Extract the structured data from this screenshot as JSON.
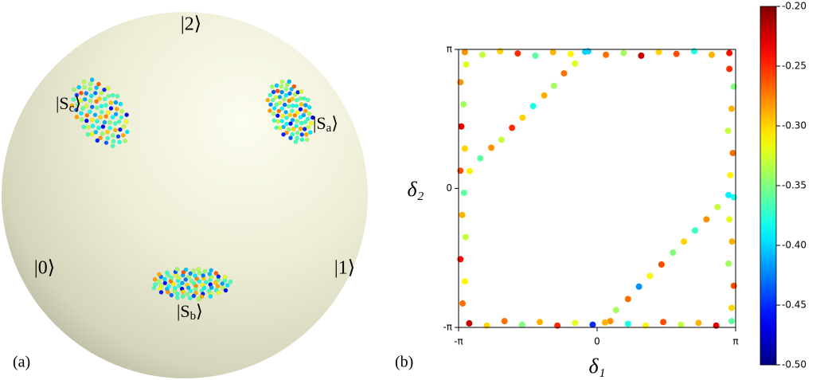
{
  "chart_data": [
    {
      "type": "sphere",
      "panel_label": "(a)",
      "basis_labels": [
        "|2⟩",
        "|0⟩",
        "|1⟩"
      ],
      "state_labels": [
        {
          "pre": "|S",
          "sub": "c",
          "post": "⟩"
        },
        {
          "pre": "|S",
          "sub": "a",
          "post": "⟩"
        },
        {
          "pre": "|S",
          "sub": "b",
          "post": "⟩"
        }
      ]
    },
    {
      "type": "scatter",
      "panel_label": "(b)",
      "xlabel": "δ₁",
      "ylabel": "δ₂",
      "xlim": [
        -3.1416,
        3.1416
      ],
      "ylim": [
        -3.1416,
        3.1416
      ],
      "xticks": [
        {
          "value": -3.1416,
          "label": "-π"
        },
        0,
        {
          "value": 3.1416,
          "label": "π"
        }
      ],
      "yticks": [
        {
          "value": -3.1416,
          "label": "-π"
        },
        0,
        {
          "value": 3.1416,
          "label": "π"
        }
      ],
      "colormap": "jet",
      "clim": [
        -0.5,
        -0.2
      ],
      "cticks": [
        {
          "value": -0.2,
          "label": "-0.20"
        },
        {
          "value": -0.25,
          "label": "-0.25"
        },
        {
          "value": -0.3,
          "label": "-0.30"
        },
        {
          "value": -0.35,
          "label": "-0.35"
        },
        {
          "value": -0.4,
          "label": "-0.40"
        },
        {
          "value": -0.45,
          "label": "-0.45"
        },
        {
          "value": -0.5,
          "label": "-0.50"
        }
      ],
      "x": [
        -3.0,
        -2.6,
        -2.2,
        -1.8,
        -1.4,
        -1.0,
        -0.6,
        -0.2,
        0.2,
        0.6,
        1.0,
        1.4,
        1.8,
        2.2,
        2.6,
        3.0,
        -2.9,
        -2.5,
        -2.1,
        -1.7,
        -1.3,
        -0.9,
        -0.5,
        -0.1,
        0.3,
        0.7,
        1.1,
        1.5,
        1.9,
        2.3,
        2.7,
        3.05,
        -3.05,
        -3.0,
        -3.1,
        -2.98,
        -3.06,
        -3.02,
        -3.1,
        -3.0,
        -3.08,
        -3.03,
        -3.1,
        -2.97,
        3.05,
        3.1,
        2.98,
        3.06,
        3.0,
        3.1,
        3.02,
        3.08,
        2.97,
        3.05,
        3.1,
        3.0,
        -2.89,
        -2.65,
        -2.4,
        -2.17,
        -1.93,
        -1.69,
        -1.45,
        -1.2,
        -0.98,
        -0.75,
        -0.5,
        -0.27,
        0.18,
        0.43,
        0.7,
        0.95,
        1.2,
        1.46,
        1.72,
        1.97,
        2.22,
        2.48,
        2.73,
        2.98
      ],
      "y": [
        3.08,
        3.02,
        3.1,
        3.05,
        3.0,
        3.08,
        3.04,
        3.1,
        3.02,
        3.06,
        3.0,
        3.08,
        3.04,
        3.1,
        3.02,
        3.06,
        -3.05,
        -3.1,
        -3.0,
        -3.08,
        -3.02,
        -3.1,
        -3.04,
        -3.08,
        -3.0,
        -3.06,
        -3.1,
        -3.02,
        -3.08,
        -3.04,
        -3.1,
        -3.0,
        -2.6,
        -2.1,
        -1.6,
        -1.1,
        -0.6,
        -0.1,
        0.4,
        0.9,
        1.4,
        1.9,
        2.4,
        2.8,
        -2.7,
        -2.2,
        -1.7,
        -1.2,
        -0.7,
        -0.2,
        0.3,
        0.8,
        1.3,
        1.8,
        2.3,
        2.7,
        0.39,
        0.68,
        0.92,
        1.1,
        1.37,
        1.6,
        1.86,
        2.1,
        2.32,
        2.6,
        2.82,
        3.09,
        -3.03,
        -2.75,
        -2.5,
        -2.22,
        -1.98,
        -1.72,
        -1.45,
        -1.2,
        -0.95,
        -0.7,
        -0.42,
        -0.15
      ],
      "c": [
        -0.28,
        -0.33,
        -0.3,
        -0.25,
        -0.36,
        -0.29,
        -0.31,
        -0.4,
        -0.27,
        -0.34,
        -0.22,
        -0.3,
        -0.26,
        -0.38,
        -0.29,
        -0.24,
        -0.22,
        -0.3,
        -0.27,
        -0.35,
        -0.29,
        -0.25,
        -0.32,
        -0.45,
        -0.28,
        -0.38,
        -0.31,
        -0.26,
        -0.33,
        -0.29,
        -0.23,
        -0.36,
        -0.27,
        -0.31,
        -0.24,
        -0.33,
        -0.29,
        -0.36,
        -0.26,
        -0.3,
        -0.23,
        -0.34,
        -0.28,
        -0.32,
        -0.3,
        -0.26,
        -0.34,
        -0.29,
        -0.32,
        -0.38,
        -0.31,
        -0.27,
        -0.33,
        -0.29,
        -0.35,
        -0.25,
        -0.31,
        -0.36,
        -0.28,
        -0.33,
        -0.25,
        -0.3,
        -0.38,
        -0.29,
        -0.34,
        -0.27,
        -0.32,
        -0.4,
        -0.29,
        -0.34,
        -0.27,
        -0.42,
        -0.31,
        -0.26,
        -0.35,
        -0.3,
        -0.37,
        -0.28,
        -0.33,
        -0.39
      ]
    }
  ]
}
